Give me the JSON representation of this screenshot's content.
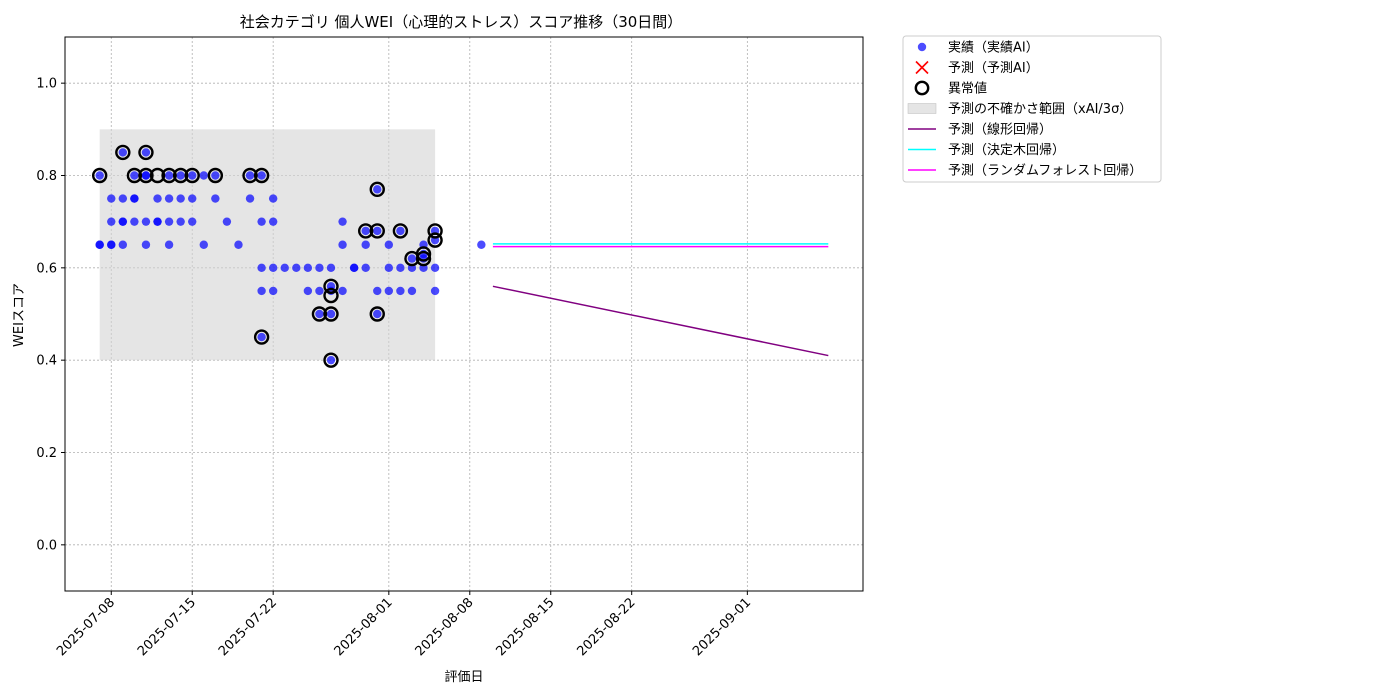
{
  "chart_data": {
    "type": "scatter",
    "title": "社会カテゴリ 個人WEI（心理的ストレス）スコア推移（30日間）",
    "xlabel": "評価日",
    "ylabel": "WEIスコア",
    "xlim": [
      "2025-07-04",
      "2025-09-11"
    ],
    "ylim": [
      -0.1,
      1.1
    ],
    "x_ticks": [
      "2025-07-08",
      "2025-07-15",
      "2025-07-22",
      "2025-08-01",
      "2025-08-08",
      "2025-08-15",
      "2025-08-22",
      "2025-09-01"
    ],
    "y_ticks": [
      "0.0",
      "0.2",
      "0.4",
      "0.6",
      "0.8",
      "1.0"
    ],
    "grid": true,
    "legend_position": "outside-top-right",
    "colors": {
      "actual": "#0000ff",
      "predicted_ai": "#ff0000",
      "anomaly": "#000000",
      "uncertainty": "#d3d3d3",
      "linear": "#800080",
      "tree": "#00ffff",
      "forest": "#ff00ff"
    },
    "legend": [
      {
        "label": "実績（実績AI）",
        "marker": "dot",
        "color": "#0000ff"
      },
      {
        "label": "予測（予測AI）",
        "marker": "x",
        "color": "#ff0000"
      },
      {
        "label": "異常値",
        "marker": "ring",
        "color": "#000000"
      },
      {
        "label": "予測の不確かさ範囲（xAI/3σ）",
        "marker": "patch",
        "color": "#d3d3d3"
      },
      {
        "label": "予測（線形回帰）",
        "marker": "line",
        "color": "#800080"
      },
      {
        "label": "予測（決定木回帰）",
        "marker": "line",
        "color": "#00ffff"
      },
      {
        "label": "予測（ランダムフォレスト回帰）",
        "marker": "line",
        "color": "#ff00ff"
      }
    ],
    "actual": [
      {
        "x": "2025-07-07",
        "y": 0.65
      },
      {
        "x": "2025-07-07",
        "y": 0.8
      },
      {
        "x": "2025-07-07",
        "y": 0.65
      },
      {
        "x": "2025-07-08",
        "y": 0.65
      },
      {
        "x": "2025-07-08",
        "y": 0.75
      },
      {
        "x": "2025-07-08",
        "y": 0.65
      },
      {
        "x": "2025-07-08",
        "y": 0.7
      },
      {
        "x": "2025-07-09",
        "y": 0.7
      },
      {
        "x": "2025-07-09",
        "y": 0.65
      },
      {
        "x": "2025-07-09",
        "y": 0.75
      },
      {
        "x": "2025-07-09",
        "y": 0.7
      },
      {
        "x": "2025-07-09",
        "y": 0.85
      },
      {
        "x": "2025-07-10",
        "y": 0.75
      },
      {
        "x": "2025-07-10",
        "y": 0.7
      },
      {
        "x": "2025-07-10",
        "y": 0.8
      },
      {
        "x": "2025-07-10",
        "y": 0.75
      },
      {
        "x": "2025-07-11",
        "y": 0.7
      },
      {
        "x": "2025-07-11",
        "y": 0.65
      },
      {
        "x": "2025-07-11",
        "y": 0.85
      },
      {
        "x": "2025-07-11",
        "y": 0.8
      },
      {
        "x": "2025-07-11",
        "y": 0.8
      },
      {
        "x": "2025-07-12",
        "y": 0.75
      },
      {
        "x": "2025-07-12",
        "y": 0.7
      },
      {
        "x": "2025-07-12",
        "y": 0.7
      },
      {
        "x": "2025-07-13",
        "y": 0.65
      },
      {
        "x": "2025-07-13",
        "y": 0.8
      },
      {
        "x": "2025-07-13",
        "y": 0.75
      },
      {
        "x": "2025-07-13",
        "y": 0.7
      },
      {
        "x": "2025-07-14",
        "y": 0.8
      },
      {
        "x": "2025-07-14",
        "y": 0.75
      },
      {
        "x": "2025-07-14",
        "y": 0.7
      },
      {
        "x": "2025-07-15",
        "y": 0.8
      },
      {
        "x": "2025-07-15",
        "y": 0.75
      },
      {
        "x": "2025-07-15",
        "y": 0.7
      },
      {
        "x": "2025-07-16",
        "y": 0.65
      },
      {
        "x": "2025-07-16",
        "y": 0.8
      },
      {
        "x": "2025-07-17",
        "y": 0.75
      },
      {
        "x": "2025-07-17",
        "y": 0.8
      },
      {
        "x": "2025-07-18",
        "y": 0.7
      },
      {
        "x": "2025-07-19",
        "y": 0.65
      },
      {
        "x": "2025-07-20",
        "y": 0.8
      },
      {
        "x": "2025-07-20",
        "y": 0.75
      },
      {
        "x": "2025-07-21",
        "y": 0.8
      },
      {
        "x": "2025-07-21",
        "y": 0.7
      },
      {
        "x": "2025-07-21",
        "y": 0.6
      },
      {
        "x": "2025-07-21",
        "y": 0.55
      },
      {
        "x": "2025-07-21",
        "y": 0.45
      },
      {
        "x": "2025-07-22",
        "y": 0.75
      },
      {
        "x": "2025-07-22",
        "y": 0.6
      },
      {
        "x": "2025-07-22",
        "y": 0.55
      },
      {
        "x": "2025-07-22",
        "y": 0.7
      },
      {
        "x": "2025-07-23",
        "y": 0.6
      },
      {
        "x": "2025-07-24",
        "y": 0.6
      },
      {
        "x": "2025-07-25",
        "y": 0.55
      },
      {
        "x": "2025-07-25",
        "y": 0.6
      },
      {
        "x": "2025-07-26",
        "y": 0.6
      },
      {
        "x": "2025-07-26",
        "y": 0.55
      },
      {
        "x": "2025-07-26",
        "y": 0.5
      },
      {
        "x": "2025-07-27",
        "y": 0.6
      },
      {
        "x": "2025-07-27",
        "y": 0.55
      },
      {
        "x": "2025-07-27",
        "y": 0.5
      },
      {
        "x": "2025-07-27",
        "y": 0.4
      },
      {
        "x": "2025-07-27",
        "y": 0.56
      },
      {
        "x": "2025-07-28",
        "y": 0.65
      },
      {
        "x": "2025-07-28",
        "y": 0.7
      },
      {
        "x": "2025-07-28",
        "y": 0.55
      },
      {
        "x": "2025-07-29",
        "y": 0.6
      },
      {
        "x": "2025-07-29",
        "y": 0.6
      },
      {
        "x": "2025-07-30",
        "y": 0.65
      },
      {
        "x": "2025-07-30",
        "y": 0.68
      },
      {
        "x": "2025-07-30",
        "y": 0.6
      },
      {
        "x": "2025-07-31",
        "y": 0.77
      },
      {
        "x": "2025-07-31",
        "y": 0.68
      },
      {
        "x": "2025-07-31",
        "y": 0.55
      },
      {
        "x": "2025-07-31",
        "y": 0.5
      },
      {
        "x": "2025-08-01",
        "y": 0.55
      },
      {
        "x": "2025-08-01",
        "y": 0.6
      },
      {
        "x": "2025-08-01",
        "y": 0.65
      },
      {
        "x": "2025-08-02",
        "y": 0.68
      },
      {
        "x": "2025-08-02",
        "y": 0.6
      },
      {
        "x": "2025-08-02",
        "y": 0.55
      },
      {
        "x": "2025-08-03",
        "y": 0.62
      },
      {
        "x": "2025-08-03",
        "y": 0.6
      },
      {
        "x": "2025-08-03",
        "y": 0.55
      },
      {
        "x": "2025-08-04",
        "y": 0.65
      },
      {
        "x": "2025-08-04",
        "y": 0.63
      },
      {
        "x": "2025-08-04",
        "y": 0.6
      },
      {
        "x": "2025-08-04",
        "y": 0.62
      },
      {
        "x": "2025-08-05",
        "y": 0.68
      },
      {
        "x": "2025-08-05",
        "y": 0.66
      },
      {
        "x": "2025-08-05",
        "y": 0.6
      },
      {
        "x": "2025-08-05",
        "y": 0.55
      },
      {
        "x": "2025-08-09",
        "y": 0.65
      }
    ],
    "anomalies": [
      {
        "x": "2025-07-07",
        "y": 0.8
      },
      {
        "x": "2025-07-09",
        "y": 0.85
      },
      {
        "x": "2025-07-10",
        "y": 0.8
      },
      {
        "x": "2025-07-11",
        "y": 0.85
      },
      {
        "x": "2025-07-11",
        "y": 0.8
      },
      {
        "x": "2025-07-12",
        "y": 0.8
      },
      {
        "x": "2025-07-13",
        "y": 0.8
      },
      {
        "x": "2025-07-14",
        "y": 0.8
      },
      {
        "x": "2025-07-15",
        "y": 0.8
      },
      {
        "x": "2025-07-17",
        "y": 0.8
      },
      {
        "x": "2025-07-20",
        "y": 0.8
      },
      {
        "x": "2025-07-21",
        "y": 0.8
      },
      {
        "x": "2025-07-21",
        "y": 0.45
      },
      {
        "x": "2025-07-26",
        "y": 0.5
      },
      {
        "x": "2025-07-27",
        "y": 0.5
      },
      {
        "x": "2025-07-27",
        "y": 0.4
      },
      {
        "x": "2025-07-27",
        "y": 0.54
      },
      {
        "x": "2025-07-27",
        "y": 0.56
      },
      {
        "x": "2025-07-30",
        "y": 0.68
      },
      {
        "x": "2025-07-31",
        "y": 0.77
      },
      {
        "x": "2025-07-31",
        "y": 0.68
      },
      {
        "x": "2025-07-31",
        "y": 0.5
      },
      {
        "x": "2025-08-02",
        "y": 0.68
      },
      {
        "x": "2025-08-03",
        "y": 0.62
      },
      {
        "x": "2025-08-04",
        "y": 0.63
      },
      {
        "x": "2025-08-04",
        "y": 0.62
      },
      {
        "x": "2025-08-05",
        "y": 0.68
      },
      {
        "x": "2025-08-05",
        "y": 0.66
      }
    ],
    "uncertainty_band": {
      "x": [
        "2025-07-07",
        "2025-08-05"
      ],
      "y": [
        0.4,
        0.9
      ]
    },
    "forecast_lines": [
      {
        "name": "予測（線形回帰）",
        "color": "#800080",
        "x": [
          "2025-08-10",
          "2025-09-08"
        ],
        "y": [
          0.56,
          0.41
        ]
      },
      {
        "name": "予測（決定木回帰）",
        "color": "#00ffff",
        "x": [
          "2025-08-10",
          "2025-09-08"
        ],
        "y": [
          0.652,
          0.652
        ]
      },
      {
        "name": "予測（ランダムフォレスト回帰）",
        "color": "#ff00ff",
        "x": [
          "2025-08-10",
          "2025-09-08"
        ],
        "y": [
          0.646,
          0.646
        ]
      }
    ]
  }
}
